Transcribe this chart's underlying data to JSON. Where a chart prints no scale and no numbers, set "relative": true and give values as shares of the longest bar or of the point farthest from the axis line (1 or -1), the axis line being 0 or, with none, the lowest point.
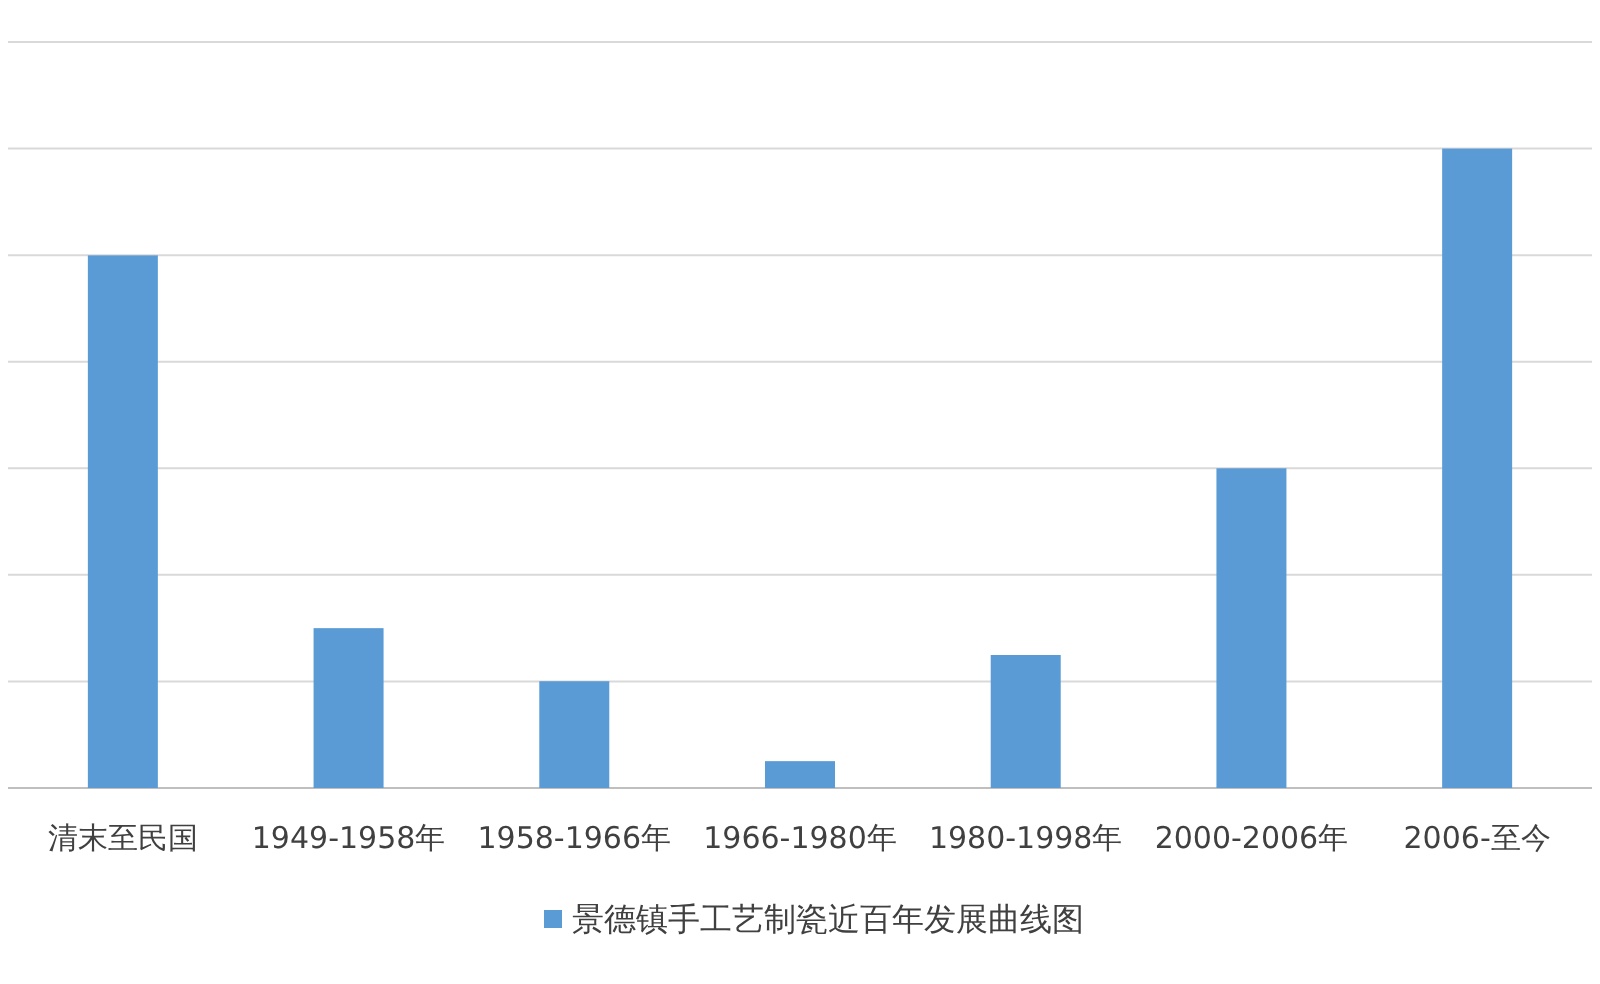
{
  "chart_data": {
    "type": "bar",
    "relative": true,
    "categories": [
      "清末至民国",
      "1949-1958年",
      "1958-1966年",
      "1966-1980年",
      "1980-1998年",
      "2000-2006年",
      "2006-至今"
    ],
    "series": [
      {
        "name": "景德镇手工艺制瓷近百年发展曲线图",
        "color": "#5b9bd5",
        "values": [
          0.833,
          0.25,
          0.167,
          0.042,
          0.208,
          0.5,
          1
        ]
      }
    ],
    "grid": "y",
    "legend": "bottom"
  }
}
